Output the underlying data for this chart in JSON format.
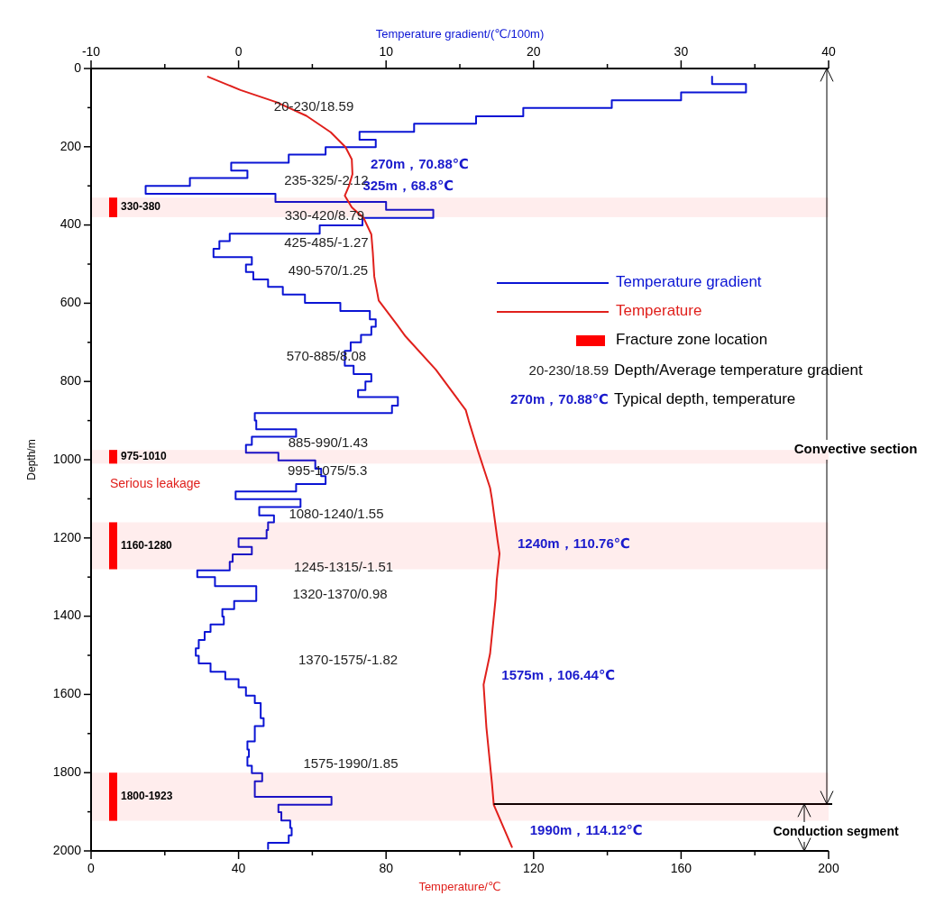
{
  "chart_data": {
    "type": "line",
    "xlabel": "Temperature/℃",
    "x2label": "Temperature gradient/(℃/100m)",
    "ylabel": "Depth/m",
    "xlim": [
      0,
      200
    ],
    "xticks": [
      0,
      {
        "value": 20,
        "label": null
      },
      40,
      {
        "value": 60,
        "label": null
      },
      80,
      {
        "value": 100,
        "label": null
      },
      120,
      {
        "value": 140,
        "label": null
      },
      160,
      {
        "value": 180,
        "label": null
      },
      200
    ],
    "x2lim": [
      -10,
      40
    ],
    "x2ticks": [
      -10,
      {
        "value": -5,
        "label": null
      },
      0,
      {
        "value": 5,
        "label": null
      },
      10,
      {
        "value": 15,
        "label": null
      },
      20,
      {
        "value": 25,
        "label": null
      },
      30,
      {
        "value": 35,
        "label": null
      },
      40
    ],
    "ylim": [
      2000,
      0
    ],
    "yticks": [
      0,
      {
        "value": 100,
        "label": null
      },
      200,
      {
        "value": 300,
        "label": null
      },
      400,
      {
        "value": 500,
        "label": null
      },
      600,
      {
        "value": 700,
        "label": null
      },
      800,
      {
        "value": 900,
        "label": null
      },
      1000,
      {
        "value": 1100,
        "label": null
      },
      1200,
      {
        "value": 1300,
        "label": null
      },
      1400,
      {
        "value": 1500,
        "label": null
      },
      1600,
      {
        "value": 1700,
        "label": null
      },
      1800,
      {
        "value": 1900,
        "label": null
      },
      2000
    ],
    "legend": "right",
    "series": [
      {
        "name": "Temperature gradient",
        "axis": "x2",
        "color": "#0a14d4",
        "x": [
          32.1,
          32.1,
          34.4,
          34.4,
          30.0,
          30.0,
          25.3,
          25.3,
          19.3,
          19.3,
          16.1,
          16.1,
          11.9,
          11.9,
          8.2,
          8.2,
          9.3,
          9.3,
          5.9,
          5.9,
          3.4,
          3.4,
          -0.5,
          -0.5,
          0.6,
          0.6,
          -3.3,
          -3.3,
          -6.3,
          -6.3,
          2.5,
          2.5,
          10.0,
          10.0,
          13.2,
          13.2,
          8.4,
          8.4,
          5.5,
          5.5,
          -0.6,
          -0.6,
          -1.3,
          -1.3,
          -1.7,
          -1.7,
          0.9,
          0.9,
          0.5,
          0.5,
          1.0,
          1.0,
          2.0,
          2.0,
          3.0,
          3.0,
          4.5,
          4.5,
          6.9,
          6.9,
          8.9,
          8.9,
          9.3,
          9.3,
          9.0,
          9.0,
          8.3,
          8.3,
          7.6,
          7.6,
          7.2,
          7.2,
          7.8,
          7.8,
          9.0,
          9.0,
          8.6,
          8.6,
          8.1,
          8.1,
          10.8,
          10.8,
          10.4,
          10.4,
          1.1,
          1.1,
          1.2,
          1.2,
          3.9,
          3.9,
          0.9,
          0.9,
          0.5,
          0.5,
          2.7,
          2.7,
          5.2,
          5.2,
          5.6,
          5.6,
          5.9,
          5.9,
          3.9,
          3.9,
          -0.2,
          -0.2,
          4.2,
          4.2,
          1.4,
          1.4,
          2.4,
          2.4,
          2.0,
          2.0,
          1.9,
          1.9,
          0.0,
          0.0,
          0.9,
          0.9,
          -0.4,
          -0.4,
          -0.6,
          -0.6,
          -2.8,
          -2.8,
          -1.6,
          -1.6,
          1.2,
          1.2,
          -0.3,
          -0.3,
          -1.1,
          -1.1,
          -1.0,
          -1.0,
          -1.9,
          -1.9,
          -2.3,
          -2.3,
          -2.7,
          -2.7,
          -2.9,
          -2.9,
          -2.7,
          -2.7,
          -1.9,
          -1.9,
          -0.9,
          -0.9,
          0.0,
          0.0,
          0.5,
          0.5,
          1.1,
          1.1,
          1.5,
          1.5,
          1.7,
          1.7,
          1.1,
          1.1,
          0.6,
          0.6,
          0.7,
          0.7,
          0.6,
          0.6,
          0.9,
          0.9,
          1.6,
          1.6,
          1.1,
          1.1,
          6.3,
          6.3,
          2.7,
          2.7,
          2.9,
          2.9,
          3.5,
          3.5,
          3.6,
          3.6,
          3.4,
          3.4,
          2.0,
          2.0
        ],
        "values": [
          21,
          40,
          40,
          61,
          61,
          81,
          81,
          101,
          101,
          122,
          122,
          141,
          141,
          162,
          162,
          182,
          182,
          201,
          201,
          220,
          220,
          241,
          241,
          261,
          261,
          280,
          280,
          300,
          300,
          320,
          320,
          341,
          341,
          361,
          361,
          382,
          382,
          401,
          401,
          422,
          422,
          441,
          441,
          461,
          461,
          482,
          482,
          501,
          501,
          520,
          520,
          539,
          539,
          558,
          558,
          578,
          578,
          599,
          599,
          620,
          620,
          641,
          641,
          660,
          660,
          681,
          681,
          700,
          700,
          722,
          722,
          760,
          760,
          781,
          781,
          800,
          800,
          822,
          822,
          840,
          840,
          862,
          862,
          881,
          881,
          900,
          900,
          922,
          922,
          941,
          941,
          962,
          962,
          982,
          982,
          1002,
          1002,
          1023,
          1023,
          1042,
          1042,
          1062,
          1062,
          1081,
          1081,
          1101,
          1101,
          1121,
          1121,
          1142,
          1142,
          1160,
          1160,
          1180,
          1180,
          1201,
          1201,
          1223,
          1223,
          1242,
          1242,
          1261,
          1261,
          1283,
          1283,
          1300,
          1300,
          1323,
          1323,
          1361,
          1361,
          1382,
          1382,
          1401,
          1401,
          1421,
          1421,
          1440,
          1440,
          1461,
          1461,
          1482,
          1482,
          1501,
          1501,
          1521,
          1521,
          1542,
          1542,
          1561,
          1561,
          1582,
          1582,
          1603,
          1603,
          1622,
          1622,
          1661,
          1661,
          1681,
          1681,
          1720,
          1720,
          1741,
          1741,
          1760,
          1760,
          1782,
          1782,
          1801,
          1801,
          1822,
          1822,
          1862,
          1862,
          1882,
          1882,
          1901,
          1901,
          1922,
          1922,
          1941,
          1941,
          1960,
          1960,
          1979,
          1979,
          1995
        ]
      },
      {
        "name": "Temperature",
        "color": "#e0201c",
        "x": [
          31.7,
          40.5,
          50.3,
          58.4,
          65.0,
          69.0,
          70.7,
          70.88,
          69.9,
          68.8,
          70.7,
          73.9,
          76.0,
          76.4,
          76.8,
          78.0,
          82.9,
          85.3,
          93.5,
          101.6,
          102.4,
          104.9,
          108.2,
          108.7,
          110.2,
          110.76,
          110.0,
          109.7,
          108.2,
          106.44,
          107.2,
          108.7,
          109.2,
          114.12
        ],
        "values": [
          21,
          55,
          86,
          121,
          163,
          201,
          232,
          270,
          301,
          325,
          355,
          382,
          424,
          470,
          532,
          593,
          654,
          685,
          770,
          873,
          900,
          977,
          1072,
          1100,
          1204,
          1240,
          1308,
          1355,
          1496,
          1575,
          1684,
          1826,
          1882,
          1990
        ]
      }
    ],
    "ref_lines": [
      {
        "axis": "y",
        "value": 1880,
        "color": "#000000"
      }
    ],
    "bands": [
      {
        "axis": "y",
        "from": 330,
        "to": 380,
        "label": "330-380",
        "color": "#ff0000"
      },
      {
        "axis": "y",
        "from": 975,
        "to": 1010,
        "label": "975-1010",
        "color": "#ff0000"
      },
      {
        "axis": "y",
        "from": 1160,
        "to": 1280,
        "label": "1160-1280",
        "color": "#ff0000"
      },
      {
        "axis": "y",
        "from": 1800,
        "to": 1923,
        "label": "1800-1923",
        "color": "#ff0000"
      }
    ],
    "annotations": [
      "20-230/18.59",
      "235-325/-2.12",
      "330-420/8.79",
      "425-485/-1.27",
      "490-570/1.25",
      "570-885/8.08",
      "885-990/1.43",
      "995-1075/5.3",
      "1080-1240/1.55",
      "1245-1315/-1.51",
      "1320-1370/0.98",
      "1370-1575/-1.82",
      "1575-1990/1.85",
      "Serious leakage",
      "Convective section",
      "Conduction segment",
      "Fracture zone location",
      "20-230/18.59",
      "Depth/Average temperature gradient",
      "270m，70.88℃",
      "Typical depth, temperature",
      {
        "text": "270m，70.88℃",
        "x": 70.88,
        "y": 270
      },
      {
        "text": "325m，68.8℃",
        "x": 68.8,
        "y": 325
      },
      {
        "text": "1240m，110.76℃",
        "x": 110.76,
        "y": 1240
      },
      {
        "text": "1575m，106.44℃",
        "x": 106.44,
        "y": 1575
      },
      {
        "text": "1990m，114.12℃",
        "x": 114.12,
        "y": 1990
      }
    ]
  }
}
